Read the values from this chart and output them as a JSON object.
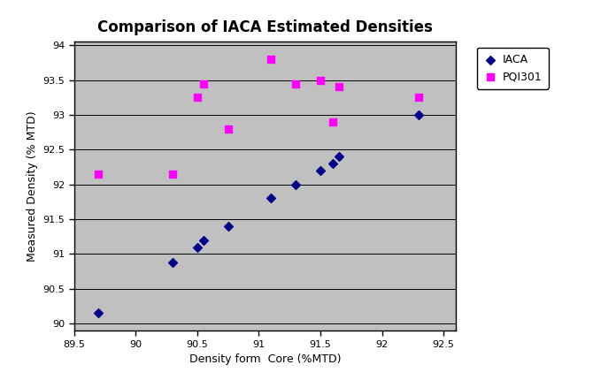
{
  "title": "Comparison of IACA Estimated Densities",
  "xlabel": "Density form  Core (%MTD)",
  "ylabel": "Measured Density (% MTD)",
  "iaca_x": [
    89.7,
    90.3,
    90.5,
    90.55,
    90.75,
    91.1,
    91.3,
    91.5,
    91.6,
    91.65,
    92.3
  ],
  "iaca_y": [
    90.15,
    90.88,
    91.1,
    91.2,
    91.4,
    91.8,
    92.0,
    92.2,
    92.3,
    92.4,
    93.0
  ],
  "pqi_x": [
    89.7,
    90.3,
    90.5,
    90.55,
    90.75,
    91.1,
    91.3,
    91.5,
    91.6,
    91.65,
    92.3
  ],
  "pqi_y": [
    92.15,
    92.15,
    93.25,
    93.45,
    92.8,
    93.8,
    93.45,
    93.5,
    92.9,
    93.4,
    93.25
  ],
  "iaca_color": "#00008B",
  "pqi_color": "#FF00FF",
  "bg_color": "#C0C0C0",
  "fig_bg_color": "#FFFFFF",
  "xlim": [
    89.5,
    92.6
  ],
  "ylim": [
    89.9,
    94.05
  ],
  "xticks": [
    89.5,
    90.0,
    90.5,
    91.0,
    91.5,
    92.0,
    92.5
  ],
  "yticks": [
    90.0,
    90.5,
    91.0,
    91.5,
    92.0,
    92.5,
    93.0,
    93.5,
    94.0
  ],
  "legend_labels": [
    "IACA",
    "PQI301"
  ],
  "title_fontsize": 12,
  "axis_label_fontsize": 9,
  "tick_fontsize": 8
}
